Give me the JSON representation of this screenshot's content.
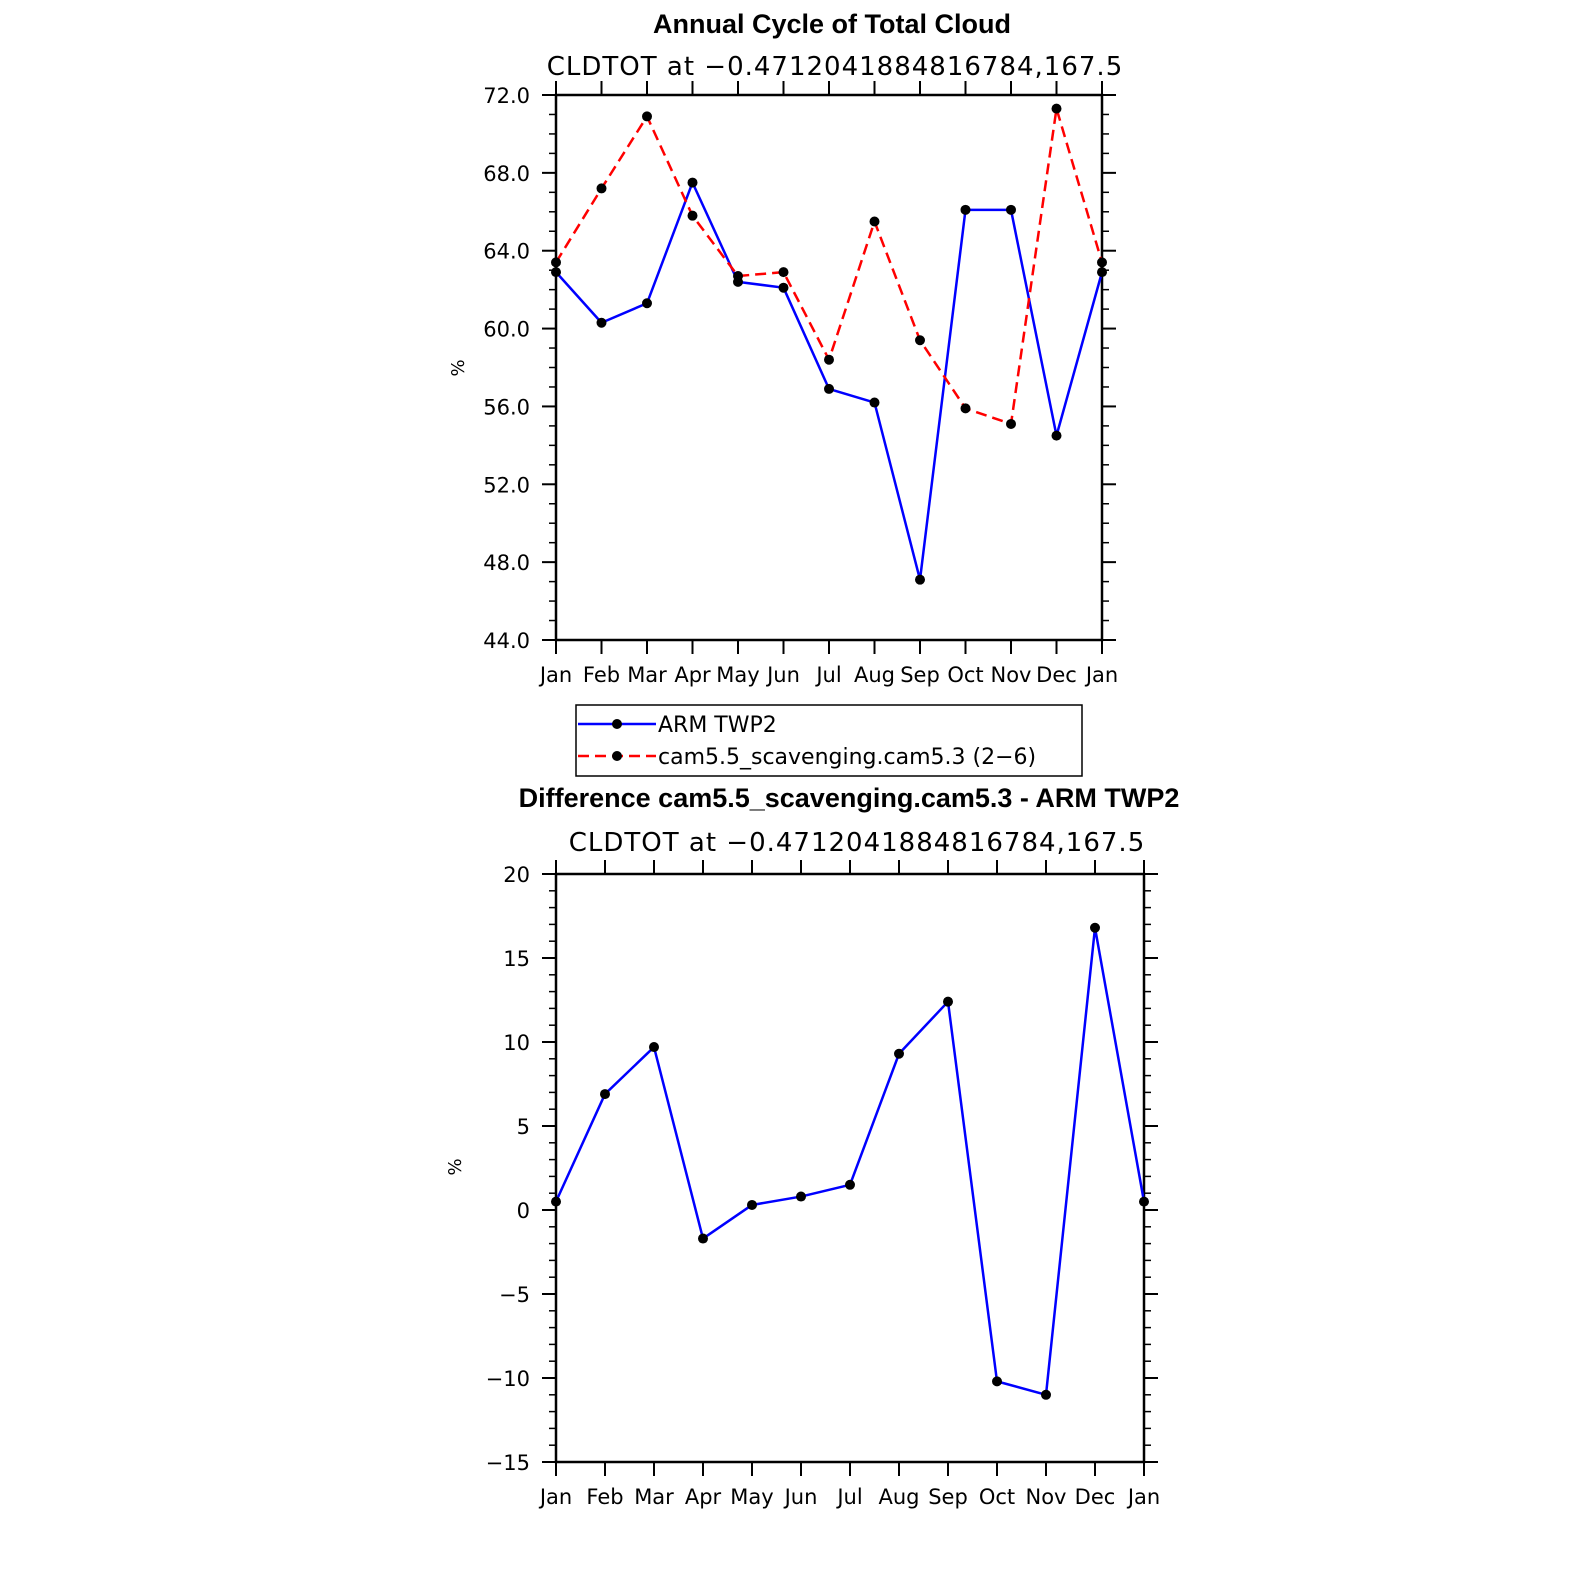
{
  "chart_data": [
    {
      "type": "line",
      "title": "Annual Cycle of Total Cloud",
      "subtitle": "CLDTOT at −0.4712041884816784,167.5",
      "ylabel": "%",
      "xlabel": "",
      "categories": [
        "Jan",
        "Feb",
        "Mar",
        "Apr",
        "May",
        "Jun",
        "Jul",
        "Aug",
        "Sep",
        "Oct",
        "Nov",
        "Dec",
        "Jan"
      ],
      "ylim": [
        44,
        72
      ],
      "yticks": [
        "44.0",
        "48.0",
        "52.0",
        "56.0",
        "60.0",
        "64.0",
        "68.0",
        "72.0"
      ],
      "series": [
        {
          "name": "ARM TWP2",
          "color": "#0000ff",
          "dash": "solid",
          "values": [
            62.9,
            60.3,
            61.3,
            67.5,
            62.4,
            62.1,
            56.9,
            56.2,
            47.1,
            66.1,
            66.1,
            54.5,
            62.9
          ]
        },
        {
          "name": "cam5.5_scavenging.cam5.3 (2−6)",
          "color": "#ff0000",
          "dash": "dashed",
          "values": [
            63.4,
            67.2,
            70.9,
            65.8,
            62.7,
            62.9,
            58.4,
            65.5,
            59.4,
            55.9,
            55.1,
            71.3,
            63.4
          ]
        }
      ],
      "legend": "below"
    },
    {
      "type": "line",
      "title": "Difference cam5.5_scavenging.cam5.3 - ARM TWP2",
      "subtitle": "CLDTOT at −0.4712041884816784,167.5",
      "ylabel": "%",
      "xlabel": "",
      "categories": [
        "Jan",
        "Feb",
        "Mar",
        "Apr",
        "May",
        "Jun",
        "Jul",
        "Aug",
        "Sep",
        "Oct",
        "Nov",
        "Dec",
        "Jan"
      ],
      "ylim": [
        -15,
        20
      ],
      "yticks": [
        "−15",
        "−10",
        "−5",
        "0",
        "5",
        "10",
        "15",
        "20"
      ],
      "series": [
        {
          "name": "Difference",
          "color": "#0000ff",
          "dash": "solid",
          "values": [
            0.5,
            6.9,
            9.7,
            -1.7,
            0.3,
            0.8,
            1.5,
            9.3,
            12.4,
            -10.2,
            -11.0,
            16.8,
            0.5
          ]
        }
      ]
    }
  ]
}
